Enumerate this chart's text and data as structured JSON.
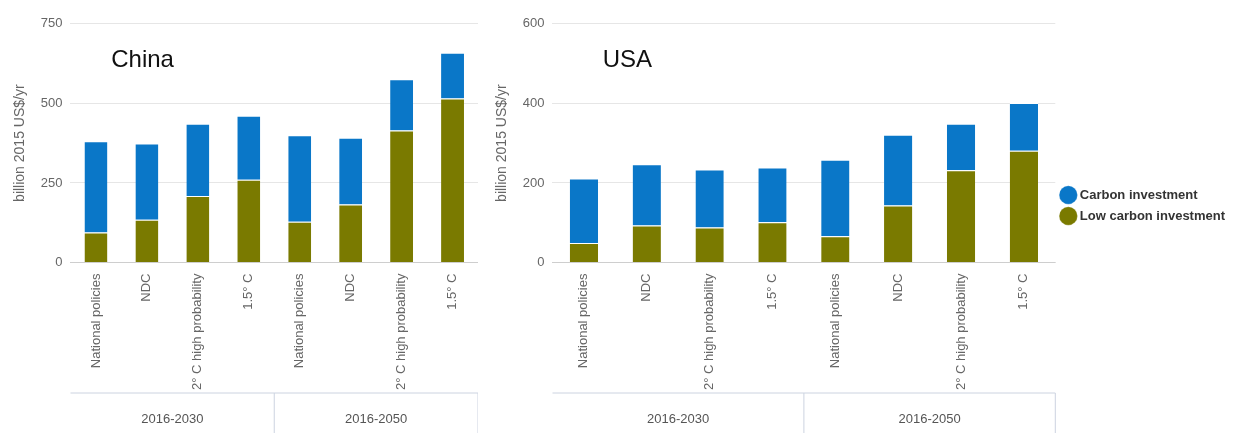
{
  "chart_data": [
    {
      "type": "bar",
      "title": "China",
      "ylabel": "billion 2015 US$/yr",
      "stacked": true,
      "categories": [
        "National policies",
        "NDC",
        "2° C high probability",
        "1.5° C",
        "National policies",
        "NDC",
        "2° C high probability",
        "1.5° C"
      ],
      "series": [
        {
          "color": "#7a7a00",
          "values": [
            94,
            134,
            209,
            260,
            128,
            182,
            415,
            515
          ]
        },
        {
          "color": "#0a77c8",
          "values": [
            287,
            240,
            227,
            201,
            272,
            210,
            161,
            144
          ]
        }
      ],
      "ylim": [
        0,
        750
      ],
      "yticks": [
        0,
        250,
        500,
        750
      ],
      "grid": "y",
      "legend": false,
      "annotations": [
        "2016-2030",
        "2016-2050"
      ]
    },
    {
      "type": "bar",
      "title": "USA",
      "ylabel": "billion 2015 US$/yr",
      "stacked": true,
      "categories": [
        "National policies",
        "NDC",
        "2° C high probability",
        "1.5° C",
        "National policies",
        "NDC",
        "2° C high probability",
        "1.5° C"
      ],
      "series": [
        {
          "name": "Low carbon investment",
          "color": "#7a7a00",
          "values": [
            49,
            93,
            88,
            101,
            66,
            143,
            232,
            281
          ]
        },
        {
          "name": "Carbon investment",
          "color": "#0a77c8",
          "values": [
            162,
            154,
            146,
            138,
            192,
            178,
            117,
            120
          ]
        }
      ],
      "ylim": [
        0,
        600
      ],
      "yticks": [
        0,
        200,
        400,
        600
      ],
      "grid": "y",
      "legend": "right",
      "annotations": [
        "2016-2030",
        "2016-2050"
      ]
    }
  ]
}
